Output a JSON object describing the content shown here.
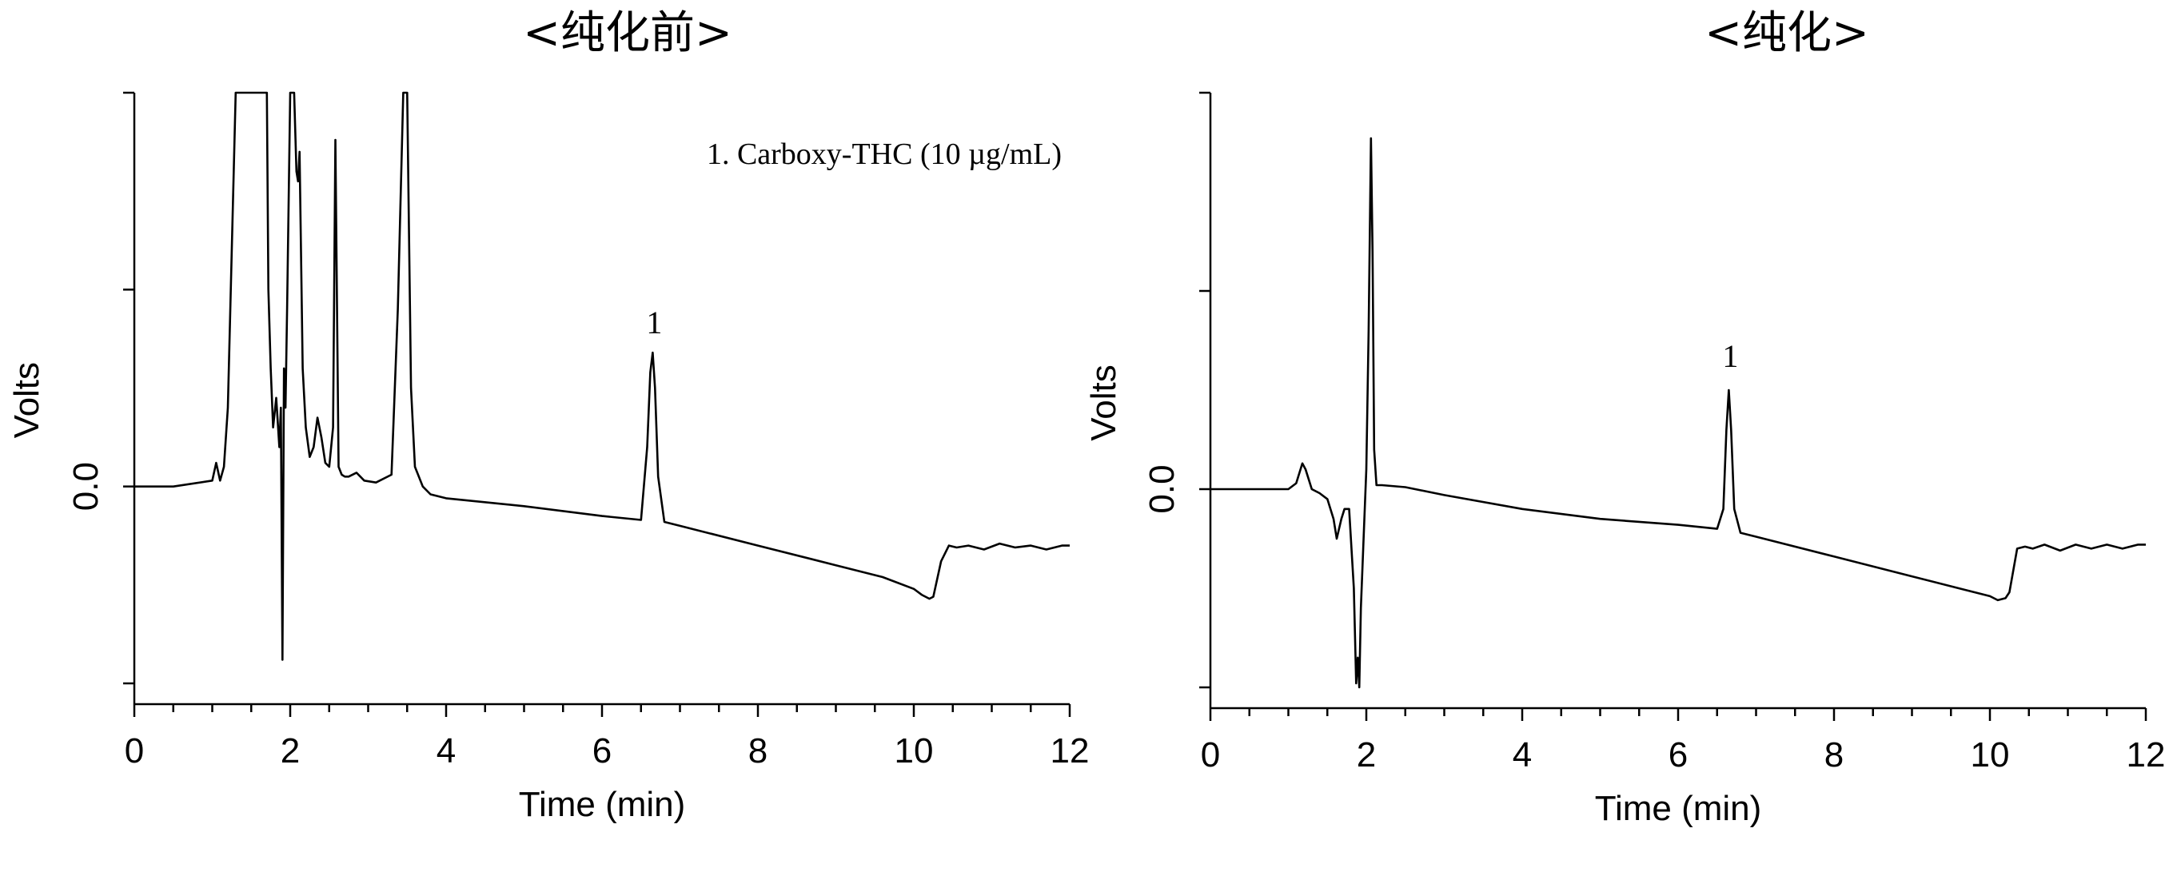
{
  "chart_data": [
    {
      "type": "line",
      "title": "<纯化前>",
      "xlabel": "Time (min)",
      "ylabel": "Volts",
      "xlim": [
        0,
        12
      ],
      "x_ticks": [
        0,
        2,
        4,
        6,
        8,
        10,
        12
      ],
      "x_tick_labels": [
        "0",
        "2",
        "4",
        "6",
        "8",
        "10",
        "12"
      ],
      "y_tick_labels": [
        "0.0"
      ],
      "ylim": [
        -1.0,
        2.0
      ],
      "grid": false,
      "annotations": [
        {
          "text": "1. Carboxy-THC (10 µg/mL)"
        },
        {
          "text": "1",
          "x": 6.65,
          "y": 0.68
        }
      ],
      "series": [
        {
          "x": [
            0,
            0.5,
            1.0,
            1.05,
            1.1,
            1.15,
            1.2,
            1.3,
            1.35,
            1.4,
            1.5,
            1.6,
            1.7,
            1.72,
            1.75,
            1.78,
            1.82,
            1.86,
            1.88,
            1.9,
            1.92,
            1.94,
            1.96,
            2.0,
            2.05,
            2.08,
            2.1,
            2.12,
            2.16,
            2.2,
            2.25,
            2.3,
            2.35,
            2.4,
            2.45,
            2.5,
            2.55,
            2.58,
            2.62,
            2.66,
            2.7,
            2.75,
            2.85,
            2.95,
            3.1,
            3.3,
            3.38,
            3.45,
            3.5,
            3.55,
            3.6,
            3.7,
            3.8,
            4.0,
            5.0,
            6.0,
            6.5,
            6.58,
            6.62,
            6.65,
            6.68,
            6.72,
            6.8,
            7.0,
            8.0,
            9.0,
            9.6,
            10.0,
            10.1,
            10.2,
            10.25,
            10.35,
            10.45,
            10.55,
            10.7,
            10.9,
            11.1,
            11.3,
            11.5,
            11.7,
            11.9,
            12.0
          ],
          "y": [
            0.0,
            0.0,
            0.03,
            0.12,
            0.03,
            0.1,
            0.4,
            2.0,
            2.0,
            2.0,
            2.0,
            2.0,
            2.0,
            1.0,
            0.6,
            0.3,
            0.45,
            0.2,
            0.4,
            -0.88,
            0.6,
            0.4,
            0.9,
            2.0,
            2.0,
            1.6,
            1.55,
            1.7,
            0.6,
            0.3,
            0.15,
            0.2,
            0.35,
            0.25,
            0.12,
            0.1,
            0.3,
            1.76,
            0.1,
            0.06,
            0.05,
            0.05,
            0.07,
            0.03,
            0.02,
            0.06,
            0.9,
            2.0,
            2.0,
            0.5,
            0.1,
            0.0,
            -0.04,
            -0.06,
            -0.1,
            -0.15,
            -0.17,
            0.2,
            0.58,
            0.68,
            0.5,
            0.05,
            -0.18,
            -0.2,
            -0.3,
            -0.4,
            -0.46,
            -0.52,
            -0.55,
            -0.57,
            -0.56,
            -0.38,
            -0.3,
            -0.31,
            -0.3,
            -0.32,
            -0.29,
            -0.31,
            -0.3,
            -0.32,
            -0.3,
            -0.3
          ]
        }
      ]
    },
    {
      "type": "line",
      "title": "<纯化>",
      "xlabel": "Time (min)",
      "ylabel": "Volts",
      "xlim": [
        0,
        12
      ],
      "x_ticks": [
        0,
        2,
        4,
        6,
        8,
        10,
        12
      ],
      "x_tick_labels": [
        "0",
        "2",
        "4",
        "6",
        "8",
        "10",
        "12"
      ],
      "y_tick_labels": [
        "0.0"
      ],
      "ylim": [
        -1.0,
        2.0
      ],
      "grid": false,
      "annotations": [
        {
          "text": "1",
          "x": 6.65,
          "y": 0.52
        }
      ],
      "series": [
        {
          "x": [
            0,
            0.5,
            1.0,
            1.1,
            1.18,
            1.22,
            1.3,
            1.4,
            1.5,
            1.58,
            1.62,
            1.68,
            1.72,
            1.78,
            1.84,
            1.87,
            1.89,
            1.91,
            1.93,
            1.96,
            2.0,
            2.03,
            2.06,
            2.08,
            2.1,
            2.13,
            2.2,
            2.5,
            3.0,
            4.0,
            5.0,
            6.0,
            6.5,
            6.58,
            6.62,
            6.65,
            6.68,
            6.72,
            6.8,
            7.0,
            8.0,
            9.0,
            9.6,
            10.0,
            10.1,
            10.2,
            10.25,
            10.35,
            10.45,
            10.55,
            10.7,
            10.9,
            11.1,
            11.3,
            11.5,
            11.7,
            11.9,
            12.0
          ],
          "y": [
            0.0,
            0.0,
            0.0,
            0.03,
            0.13,
            0.1,
            0.0,
            -0.02,
            -0.05,
            -0.15,
            -0.25,
            -0.15,
            -0.1,
            -0.1,
            -0.5,
            -0.98,
            -0.85,
            -1.0,
            -0.6,
            -0.3,
            0.1,
            0.8,
            1.77,
            1.2,
            0.2,
            0.02,
            0.02,
            0.01,
            -0.03,
            -0.1,
            -0.15,
            -0.18,
            -0.2,
            -0.1,
            0.3,
            0.5,
            0.3,
            -0.1,
            -0.22,
            -0.24,
            -0.34,
            -0.44,
            -0.5,
            -0.54,
            -0.56,
            -0.55,
            -0.52,
            -0.3,
            -0.29,
            -0.3,
            -0.28,
            -0.31,
            -0.28,
            -0.3,
            -0.28,
            -0.3,
            -0.28,
            -0.28
          ]
        }
      ]
    }
  ]
}
